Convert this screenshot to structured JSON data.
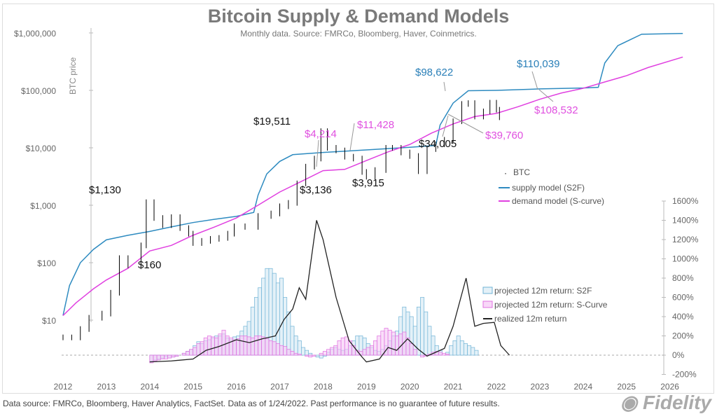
{
  "title": "Bitcoin Supply & Demand Models",
  "subtitle": "Monthly data.  Source: FMRCo, Bloomberg, Haver, Coinmetrics.",
  "footer": "Data source: FMRCo, Bloomberg, Haver Analytics, FactSet. Data as of 1/24/2022. Past performance is no guarantee of future results.",
  "logo": "Fidelity",
  "chart_data": {
    "type": "line",
    "ylabel": "BTC price",
    "y_scale": "log",
    "ylim": [
      10,
      1000000
    ],
    "y_ticks": [
      "$1,000,000",
      "$100,000",
      "$10,000",
      "$1,000",
      "$100",
      "$10"
    ],
    "y2_ticks": [
      "1600%",
      "1400%",
      "1200%",
      "1000%",
      "800%",
      "600%",
      "400%",
      "200%",
      "0%",
      "-200%"
    ],
    "y2lim": [
      -200,
      1600
    ],
    "x_ticks": [
      "2012",
      "2013",
      "2014",
      "2015",
      "2016",
      "2017",
      "2018",
      "2019",
      "2020",
      "2021",
      "2022",
      "2023",
      "2024",
      "2025",
      "2026"
    ],
    "xlim": [
      2012,
      2026
    ],
    "colors": {
      "btc": "#000000",
      "s2f": "#2e8bc0",
      "scurve": "#e040e0",
      "realized": "#222222"
    },
    "legend": [
      "BTC",
      "supply model (S2F)",
      "demand model (S-curve)"
    ],
    "legend2": [
      "projected 12m return: S2F",
      "projected 12m return: S-Curve",
      "realized 12m return"
    ],
    "btc": [
      [
        2012.0,
        5
      ],
      [
        2012.2,
        5
      ],
      [
        2012.4,
        7
      ],
      [
        2012.6,
        11
      ],
      [
        2012.9,
        13
      ],
      [
        2013.1,
        30
      ],
      [
        2013.3,
        120
      ],
      [
        2013.5,
        90
      ],
      [
        2013.8,
        200
      ],
      [
        2013.92,
        1130
      ],
      [
        2014.1,
        600
      ],
      [
        2014.3,
        450
      ],
      [
        2014.5,
        620
      ],
      [
        2014.7,
        400
      ],
      [
        2014.9,
        320
      ],
      [
        2015.0,
        220
      ],
      [
        2015.2,
        240
      ],
      [
        2015.4,
        260
      ],
      [
        2015.6,
        270
      ],
      [
        2015.8,
        320
      ],
      [
        2015.95,
        430
      ],
      [
        2016.2,
        420
      ],
      [
        2016.5,
        650
      ],
      [
        2016.8,
        720
      ],
      [
        2017.0,
        960
      ],
      [
        2017.2,
        1100
      ],
      [
        2017.4,
        2400
      ],
      [
        2017.6,
        4700
      ],
      [
        2017.8,
        6500
      ],
      [
        2017.95,
        19511
      ],
      [
        2018.1,
        10000
      ],
      [
        2018.3,
        9000
      ],
      [
        2018.5,
        7000
      ],
      [
        2018.7,
        6500
      ],
      [
        2018.9,
        3800
      ],
      [
        2019.0,
        3136
      ],
      [
        2019.2,
        4100
      ],
      [
        2019.45,
        10000
      ],
      [
        2019.6,
        10000
      ],
      [
        2019.8,
        8300
      ],
      [
        2020.0,
        7200
      ],
      [
        2020.2,
        3915
      ],
      [
        2020.4,
        9500
      ],
      [
        2020.6,
        11500
      ],
      [
        2020.8,
        13800
      ],
      [
        2021.0,
        29000
      ],
      [
        2021.2,
        58000
      ],
      [
        2021.35,
        60000
      ],
      [
        2021.5,
        35000
      ],
      [
        2021.7,
        43000
      ],
      [
        2021.85,
        61000
      ],
      [
        2022.0,
        46000
      ],
      [
        2022.07,
        34005
      ]
    ],
    "s2f": [
      [
        2012.0,
        12
      ],
      [
        2012.15,
        40
      ],
      [
        2012.4,
        100
      ],
      [
        2012.7,
        170
      ],
      [
        2013.0,
        250
      ],
      [
        2013.5,
        300
      ],
      [
        2014.0,
        350
      ],
      [
        2014.5,
        420
      ],
      [
        2015.0,
        500
      ],
      [
        2015.5,
        570
      ],
      [
        2016.0,
        640
      ],
      [
        2016.4,
        750
      ],
      [
        2016.5,
        1500
      ],
      [
        2016.7,
        3500
      ],
      [
        2017.0,
        5800
      ],
      [
        2017.3,
        7600
      ],
      [
        2018.0,
        8300
      ],
      [
        2019.0,
        9200
      ],
      [
        2020.0,
        10200
      ],
      [
        2020.6,
        11000
      ],
      [
        2020.7,
        25000
      ],
      [
        2021.0,
        60000
      ],
      [
        2021.35,
        98622
      ],
      [
        2022.0,
        100000
      ],
      [
        2023.0,
        106000
      ],
      [
        2024.0,
        110039
      ],
      [
        2024.35,
        113000
      ],
      [
        2024.5,
        300000
      ],
      [
        2024.8,
        600000
      ],
      [
        2025.35,
        950000
      ],
      [
        2026.3,
        980000
      ]
    ],
    "scurve": [
      [
        2012.0,
        12
      ],
      [
        2012.3,
        20
      ],
      [
        2012.7,
        35
      ],
      [
        2013.0,
        50
      ],
      [
        2013.5,
        80
      ],
      [
        2014.0,
        160
      ],
      [
        2014.5,
        200
      ],
      [
        2015.0,
        300
      ],
      [
        2015.5,
        420
      ],
      [
        2016.0,
        600
      ],
      [
        2016.5,
        1000
      ],
      [
        2017.0,
        1700
      ],
      [
        2017.5,
        2600
      ],
      [
        2018.0,
        4000
      ],
      [
        2018.5,
        4214
      ],
      [
        2019.0,
        6000
      ],
      [
        2019.5,
        8500
      ],
      [
        2020.0,
        11428
      ],
      [
        2020.5,
        18000
      ],
      [
        2021.0,
        26000
      ],
      [
        2021.5,
        35000
      ],
      [
        2022.0,
        39760
      ],
      [
        2022.5,
        52000
      ],
      [
        2023.0,
        70000
      ],
      [
        2023.5,
        90000
      ],
      [
        2024.0,
        108532
      ],
      [
        2024.5,
        140000
      ],
      [
        2025.0,
        180000
      ],
      [
        2025.5,
        250000
      ],
      [
        2026.3,
        380000
      ]
    ],
    "annotations": [
      {
        "text": "$1,130",
        "color": "black"
      },
      {
        "text": "$160",
        "color": "black"
      },
      {
        "text": "$19,511",
        "color": "black"
      },
      {
        "text": "$3,136",
        "color": "black"
      },
      {
        "text": "$3,915",
        "color": "black"
      },
      {
        "text": "$34,005",
        "color": "black"
      },
      {
        "text": "$4,214",
        "color": "magenta"
      },
      {
        "text": "$11,428",
        "color": "magenta"
      },
      {
        "text": "$39,760",
        "color": "magenta"
      },
      {
        "text": "$108,532",
        "color": "magenta"
      },
      {
        "text": "$98,622",
        "color": "blue"
      },
      {
        "text": "$110,039",
        "color": "blue"
      }
    ],
    "returns_start": 2014.0,
    "returns_step": 0.0833,
    "proj_s2f": [
      -60,
      -50,
      -40,
      -30,
      -20,
      -30,
      -20,
      -10,
      0,
      20,
      40,
      60,
      100,
      140,
      120,
      150,
      160,
      180,
      200,
      200,
      220,
      180,
      160,
      190,
      200,
      250,
      300,
      350,
      500,
      600,
      700,
      800,
      900,
      900,
      850,
      750,
      800,
      600,
      450,
      300,
      200,
      150,
      80,
      50,
      20,
      0,
      -20,
      -30,
      -10,
      30,
      60,
      80,
      60,
      50,
      60,
      100,
      150,
      200,
      200,
      180,
      120,
      80,
      50,
      40,
      60,
      100,
      150,
      200,
      250,
      400,
      500,
      450,
      400,
      300,
      500,
      600,
      450,
      300,
      200,
      100,
      50,
      0,
      30,
      100,
      150,
      200,
      150,
      120,
      100,
      80,
      50
    ],
    "proj_scurve": [
      -80,
      -60,
      -50,
      -40,
      -40,
      -30,
      -20,
      -10,
      0,
      20,
      40,
      60,
      80,
      120,
      140,
      180,
      200,
      190,
      180,
      220,
      260,
      200,
      180,
      160,
      170,
      200,
      200,
      190,
      180,
      200,
      200,
      190,
      170,
      150,
      140,
      120,
      100,
      90,
      60,
      40,
      20,
      10,
      0,
      -10,
      -20,
      -10,
      0,
      20,
      40,
      60,
      80,
      100,
      150,
      180,
      190,
      150,
      100,
      50,
      40,
      60,
      80,
      100,
      150,
      200,
      250,
      280,
      260,
      240,
      200,
      220,
      240,
      180,
      120,
      60,
      0,
      -20,
      -10,
      10,
      30,
      40,
      30,
      20,
      10,
      0
    ],
    "realized": [
      [
        2014.0,
        -70
      ],
      [
        2014.5,
        -60
      ],
      [
        2015.0,
        -40
      ],
      [
        2015.3,
        50
      ],
      [
        2015.6,
        90
      ],
      [
        2016.0,
        160
      ],
      [
        2016.3,
        130
      ],
      [
        2016.6,
        170
      ],
      [
        2016.9,
        200
      ],
      [
        2017.1,
        370
      ],
      [
        2017.3,
        480
      ],
      [
        2017.45,
        700
      ],
      [
        2017.6,
        580
      ],
      [
        2017.85,
        1400
      ],
      [
        2018.0,
        1200
      ],
      [
        2018.3,
        600
      ],
      [
        2018.6,
        150
      ],
      [
        2018.9,
        -20
      ],
      [
        2019.0,
        -70
      ],
      [
        2019.3,
        -40
      ],
      [
        2019.5,
        80
      ],
      [
        2019.7,
        50
      ],
      [
        2019.95,
        170
      ],
      [
        2020.2,
        60
      ],
      [
        2020.4,
        -10
      ],
      [
        2020.6,
        30
      ],
      [
        2020.8,
        70
      ],
      [
        2021.0,
        300
      ],
      [
        2021.3,
        800
      ],
      [
        2021.5,
        300
      ],
      [
        2021.7,
        330
      ],
      [
        2021.95,
        340
      ],
      [
        2022.1,
        100
      ],
      [
        2022.3,
        0
      ]
    ]
  }
}
